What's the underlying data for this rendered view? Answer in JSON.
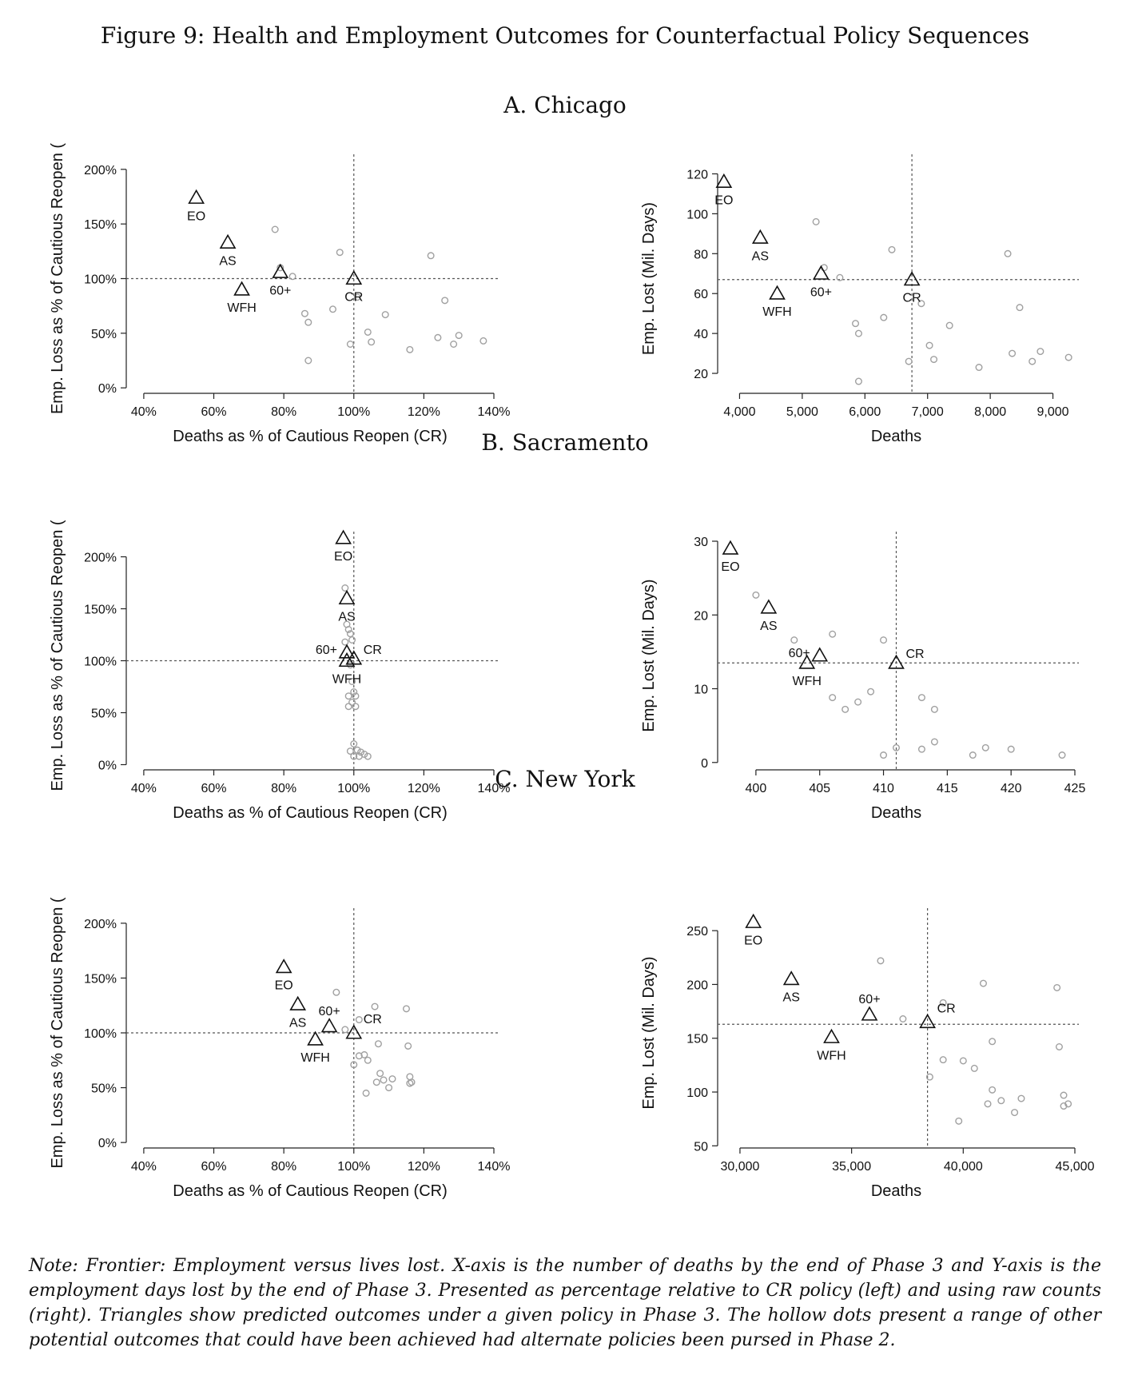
{
  "figure_title": "Figure 9: Health and Employment Outcomes for Counterfactual Policy Sequences",
  "panel_titles": [
    "A. Chicago",
    "B. Sacramento",
    "C. New York"
  ],
  "note": "Note: Frontier: Employment versus lives lost. X-axis is the number of deaths by the end of Phase 3 and Y-axis is the employment days lost by the end of Phase 3. Presented as percentage relative to CR policy (left) and using raw counts (right). Triangles show predicted outcomes under a given policy in Phase 3. The hollow dots present a range of other potential outcomes that could have been achieved had alternate policies been pursed in Phase 2.",
  "colors": {
    "dots": "#a0a0a0",
    "triangles": "#111111",
    "reference_lines": "#555555"
  },
  "chart_data": [
    {
      "panel": "A. Chicago",
      "type": "scatter",
      "xlabel": "Deaths as % of Cautious Reopen (CR)",
      "ylabel": "Emp. Loss as % of Cautious Reopen (",
      "xlim": [
        35,
        140
      ],
      "ylim": [
        -5,
        205
      ],
      "xticks": [
        40,
        60,
        80,
        100,
        120,
        140
      ],
      "xtick_labels": [
        "40%",
        "60%",
        "80%",
        "100%",
        "120%",
        "140%"
      ],
      "yticks": [
        0,
        50,
        100,
        150,
        200
      ],
      "ytick_labels": [
        "0%",
        "50%",
        "100%",
        "150%",
        "200%"
      ],
      "ref_x": 100,
      "ref_y": 100,
      "policies": [
        {
          "label": "EO",
          "x": 55,
          "y": 174,
          "label_pos": "below"
        },
        {
          "label": "AS",
          "x": 64,
          "y": 133,
          "label_pos": "below"
        },
        {
          "label": "WFH",
          "x": 68,
          "y": 90,
          "label_pos": "below"
        },
        {
          "label": "60+",
          "x": 79,
          "y": 106,
          "label_pos": "below"
        },
        {
          "label": "CR",
          "x": 100,
          "y": 100,
          "label_pos": "below"
        }
      ],
      "dots": [
        [
          77.5,
          145
        ],
        [
          79,
          110
        ],
        [
          82.5,
          102
        ],
        [
          86,
          68
        ],
        [
          87,
          60
        ],
        [
          87,
          25
        ],
        [
          94,
          72
        ],
        [
          96,
          124
        ],
        [
          99,
          40
        ],
        [
          101,
          83
        ],
        [
          104,
          51
        ],
        [
          105,
          42
        ],
        [
          109,
          67
        ],
        [
          116,
          35
        ],
        [
          122,
          121
        ],
        [
          124,
          46
        ],
        [
          126,
          80
        ],
        [
          128.5,
          40
        ],
        [
          130,
          48
        ],
        [
          137,
          43
        ]
      ]
    },
    {
      "panel": "A. Chicago",
      "type": "scatter",
      "xlabel": "Deaths",
      "ylabel": "Emp. Lost (Mil. Days)",
      "xlim": [
        3650,
        9350
      ],
      "ylim": [
        10,
        125
      ],
      "xticks": [
        4000,
        5000,
        6000,
        7000,
        8000,
        9000
      ],
      "xtick_labels": [
        "4,000",
        "5,000",
        "6,000",
        "7,000",
        "8,000",
        "9,000"
      ],
      "yticks": [
        20,
        40,
        60,
        80,
        100,
        120
      ],
      "ytick_labels": [
        "20",
        "40",
        "60",
        "80",
        "100",
        "120"
      ],
      "ref_x": 6750,
      "ref_y": 67,
      "policies": [
        {
          "label": "EO",
          "x": 3750,
          "y": 116,
          "label_pos": "below"
        },
        {
          "label": "AS",
          "x": 4330,
          "y": 88,
          "label_pos": "below"
        },
        {
          "label": "WFH",
          "x": 4600,
          "y": 60,
          "label_pos": "below"
        },
        {
          "label": "60+",
          "x": 5300,
          "y": 70,
          "label_pos": "below"
        },
        {
          "label": "CR",
          "x": 6750,
          "y": 67,
          "label_pos": "below"
        }
      ],
      "dots": [
        [
          5220,
          96
        ],
        [
          5350,
          73
        ],
        [
          5600,
          68
        ],
        [
          5850,
          45
        ],
        [
          5900,
          40
        ],
        [
          5900,
          16
        ],
        [
          6300,
          48
        ],
        [
          6430,
          82
        ],
        [
          6700,
          26
        ],
        [
          6900,
          55
        ],
        [
          7030,
          34
        ],
        [
          7100,
          27
        ],
        [
          7350,
          44
        ],
        [
          7820,
          23
        ],
        [
          8280,
          80
        ],
        [
          8350,
          30
        ],
        [
          8470,
          53
        ],
        [
          8670,
          26
        ],
        [
          8800,
          31
        ],
        [
          9250,
          28
        ]
      ]
    },
    {
      "panel": "B. Sacramento",
      "type": "scatter",
      "xlabel": "Deaths as % of Cautious Reopen (CR)",
      "ylabel": "Emp. Loss as % of Cautious Reopen (",
      "xlim": [
        35,
        140
      ],
      "ylim": [
        -5,
        215
      ],
      "xticks": [
        40,
        60,
        80,
        100,
        120,
        140
      ],
      "xtick_labels": [
        "40%",
        "60%",
        "80%",
        "100%",
        "120%",
        "140%"
      ],
      "yticks": [
        0,
        50,
        100,
        150,
        200
      ],
      "ytick_labels": [
        "0%",
        "50%",
        "100%",
        "150%",
        "200%"
      ],
      "ref_x": 100,
      "ref_y": 100,
      "policies": [
        {
          "label": "EO",
          "x": 97,
          "y": 218,
          "label_pos": "below"
        },
        {
          "label": "AS",
          "x": 98,
          "y": 160,
          "label_pos": "below"
        },
        {
          "label": "60+",
          "x": 98,
          "y": 108,
          "label_pos": "left"
        },
        {
          "label": "WFH",
          "x": 98,
          "y": 100,
          "label_pos": "below"
        },
        {
          "label": "CR",
          "x": 100,
          "y": 102,
          "label_pos": "right"
        }
      ],
      "dots": [
        [
          97.5,
          170
        ],
        [
          98,
          135
        ],
        [
          98.5,
          130
        ],
        [
          99,
          126
        ],
        [
          99.5,
          120
        ],
        [
          97.5,
          118
        ],
        [
          99,
          96
        ],
        [
          99.5,
          80
        ],
        [
          100,
          70
        ],
        [
          98.5,
          66
        ],
        [
          99.5,
          60
        ],
        [
          100.5,
          66
        ],
        [
          98.5,
          56
        ],
        [
          100.5,
          56
        ],
        [
          100,
          20
        ],
        [
          101,
          14
        ],
        [
          102,
          12
        ],
        [
          103,
          10
        ],
        [
          100,
          8
        ],
        [
          101.5,
          8
        ],
        [
          99,
          13
        ],
        [
          104,
          8
        ]
      ]
    },
    {
      "panel": "B. Sacramento",
      "type": "scatter",
      "xlabel": "Deaths",
      "ylabel": "Emp. Lost (Mil. Days)",
      "xlim": [
        397,
        425
      ],
      "ylim": [
        -1,
        30
      ],
      "xticks": [
        400,
        405,
        410,
        415,
        420,
        425
      ],
      "xtick_labels": [
        "400",
        "405",
        "410",
        "415",
        "420",
        "425"
      ],
      "yticks": [
        0,
        10,
        20,
        30
      ],
      "ytick_labels": [
        "0",
        "10",
        "20",
        "30"
      ],
      "ref_x": 411,
      "ref_y": 13.5,
      "policies": [
        {
          "label": "EO",
          "x": 398,
          "y": 29,
          "label_pos": "below"
        },
        {
          "label": "AS",
          "x": 401,
          "y": 21,
          "label_pos": "below"
        },
        {
          "label": "60+",
          "x": 405,
          "y": 14.5,
          "label_pos": "left"
        },
        {
          "label": "WFH",
          "x": 404,
          "y": 13.5,
          "label_pos": "below"
        },
        {
          "label": "CR",
          "x": 411,
          "y": 13.5,
          "label_pos": "right"
        }
      ],
      "dots": [
        [
          400,
          22.7
        ],
        [
          403,
          16.6
        ],
        [
          406,
          17.4
        ],
        [
          406,
          8.8
        ],
        [
          407,
          7.2
        ],
        [
          408,
          8.2
        ],
        [
          409,
          9.6
        ],
        [
          410,
          16.6
        ],
        [
          410,
          1
        ],
        [
          411,
          2
        ],
        [
          413,
          8.8
        ],
        [
          413,
          1.8
        ],
        [
          414,
          7.2
        ],
        [
          414,
          2.8
        ],
        [
          417,
          1
        ],
        [
          418,
          2
        ],
        [
          420,
          1.8
        ],
        [
          424,
          1
        ]
      ]
    },
    {
      "panel": "C. New York",
      "type": "scatter",
      "xlabel": "Deaths as % of Cautious Reopen (CR)",
      "ylabel": "Emp. Loss as % of Cautious Reopen (",
      "xlim": [
        35,
        140
      ],
      "ylim": [
        -5,
        205
      ],
      "xticks": [
        40,
        60,
        80,
        100,
        120,
        140
      ],
      "xtick_labels": [
        "40%",
        "60%",
        "80%",
        "100%",
        "120%",
        "140%"
      ],
      "yticks": [
        0,
        50,
        100,
        150,
        200
      ],
      "ytick_labels": [
        "0%",
        "50%",
        "100%",
        "150%",
        "200%"
      ],
      "ref_x": 100,
      "ref_y": 100,
      "policies": [
        {
          "label": "EO",
          "x": 80,
          "y": 160,
          "label_pos": "below"
        },
        {
          "label": "AS",
          "x": 84,
          "y": 126,
          "label_pos": "below"
        },
        {
          "label": "60+",
          "x": 93,
          "y": 106,
          "label_pos": "above"
        },
        {
          "label": "WFH",
          "x": 89,
          "y": 94,
          "label_pos": "below"
        },
        {
          "label": "CR",
          "x": 100,
          "y": 100,
          "label_pos": "above-right"
        }
      ],
      "dots": [
        [
          95,
          137
        ],
        [
          97.5,
          103
        ],
        [
          100,
          71
        ],
        [
          101.5,
          79
        ],
        [
          101.5,
          112
        ],
        [
          103,
          80
        ],
        [
          103.5,
          45
        ],
        [
          104,
          75
        ],
        [
          106,
          124
        ],
        [
          106.5,
          55
        ],
        [
          107,
          90
        ],
        [
          107.5,
          63
        ],
        [
          108.5,
          57
        ],
        [
          110,
          50
        ],
        [
          111,
          58
        ],
        [
          115,
          122
        ],
        [
          115.5,
          88
        ],
        [
          116,
          54
        ],
        [
          116,
          60
        ],
        [
          116.5,
          55
        ]
      ]
    },
    {
      "panel": "C. New York",
      "type": "scatter",
      "xlabel": "Deaths",
      "ylabel": "Emp. Lost (Mil. Days)",
      "xlim": [
        29000,
        45000
      ],
      "ylim": [
        48,
        262
      ],
      "xticks": [
        30000,
        35000,
        40000,
        45000
      ],
      "xtick_labels": [
        "30,000",
        "35,000",
        "40,000",
        "45,000"
      ],
      "yticks": [
        50,
        100,
        150,
        200,
        250
      ],
      "ytick_labels": [
        "50",
        "100",
        "150",
        "200",
        "250"
      ],
      "ref_x": 38400,
      "ref_y": 163,
      "policies": [
        {
          "label": "EO",
          "x": 30600,
          "y": 258,
          "label_pos": "below"
        },
        {
          "label": "AS",
          "x": 32300,
          "y": 205,
          "label_pos": "below"
        },
        {
          "label": "WFH",
          "x": 34100,
          "y": 151,
          "label_pos": "below"
        },
        {
          "label": "60+",
          "x": 35800,
          "y": 172,
          "label_pos": "above"
        },
        {
          "label": "CR",
          "x": 38400,
          "y": 165,
          "label_pos": "above-right"
        }
      ],
      "dots": [
        [
          36300,
          222
        ],
        [
          37300,
          168
        ],
        [
          38500,
          114
        ],
        [
          39100,
          130
        ],
        [
          39100,
          183
        ],
        [
          39800,
          73
        ],
        [
          40000,
          129
        ],
        [
          40500,
          122
        ],
        [
          40900,
          201
        ],
        [
          41100,
          89
        ],
        [
          41300,
          102
        ],
        [
          41300,
          147
        ],
        [
          41700,
          92
        ],
        [
          42300,
          81
        ],
        [
          42600,
          94
        ],
        [
          44200,
          197
        ],
        [
          44300,
          142
        ],
        [
          44500,
          87
        ],
        [
          44500,
          97
        ],
        [
          44700,
          89
        ]
      ]
    }
  ]
}
